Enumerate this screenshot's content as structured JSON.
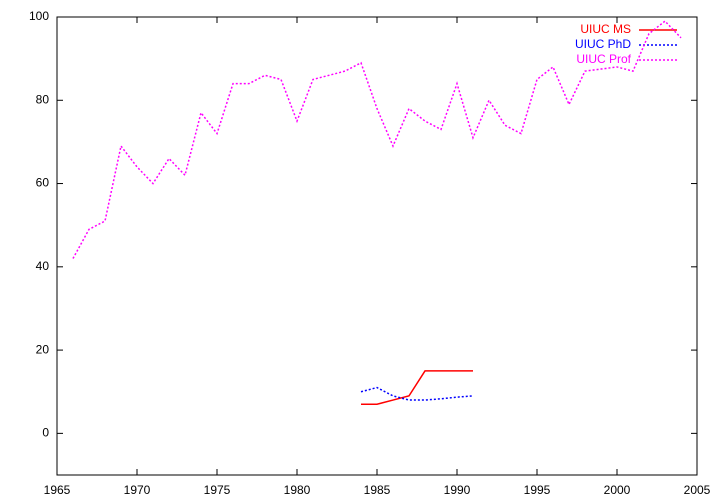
{
  "chart_data": {
    "type": "line",
    "xlim": [
      1965,
      2005
    ],
    "xticks": [
      1965,
      1970,
      1975,
      1980,
      1985,
      1990,
      1995,
      2000,
      2005
    ],
    "ylim": [
      -10,
      100
    ],
    "yticks": [
      0,
      20,
      40,
      60,
      80,
      100
    ],
    "legend": "top right",
    "series": [
      {
        "name": "UIUC MS",
        "color": "#ff0000",
        "style": "solid",
        "x": [
          1984,
          1985,
          1986,
          1987,
          1988,
          1989,
          1990,
          1991
        ],
        "values": [
          7,
          7,
          8,
          9,
          15,
          15,
          15,
          15
        ]
      },
      {
        "name": "UIUC PhD",
        "color": "#0000ff",
        "style": "dotted",
        "x": [
          1984,
          1985,
          1986,
          1987,
          1988,
          1989,
          1990,
          1991
        ],
        "values": [
          10,
          11,
          9,
          8,
          8,
          8.3,
          8.7,
          9
        ]
      },
      {
        "name": "UIUC Prof",
        "color": "#ff00ff",
        "style": "dotted",
        "x": [
          1966,
          1967,
          1968,
          1969,
          1970,
          1971,
          1972,
          1973,
          1974,
          1975,
          1976,
          1977,
          1978,
          1979,
          1980,
          1981,
          1982,
          1983,
          1984,
          1985,
          1986,
          1987,
          1988,
          1989,
          1990,
          1991,
          1992,
          1993,
          1994,
          1995,
          1996,
          1997,
          1998,
          1999,
          2000,
          2001,
          2002,
          2003,
          2004
        ],
        "values": [
          42,
          49,
          51,
          69,
          64,
          60,
          66,
          62,
          77,
          72,
          84,
          84,
          86,
          85,
          75,
          85,
          86,
          87,
          89,
          78,
          69,
          78,
          75,
          73,
          84,
          71,
          80,
          74,
          72,
          85,
          88,
          79,
          87,
          87.5,
          88,
          87,
          96,
          99,
          95
        ]
      }
    ]
  }
}
